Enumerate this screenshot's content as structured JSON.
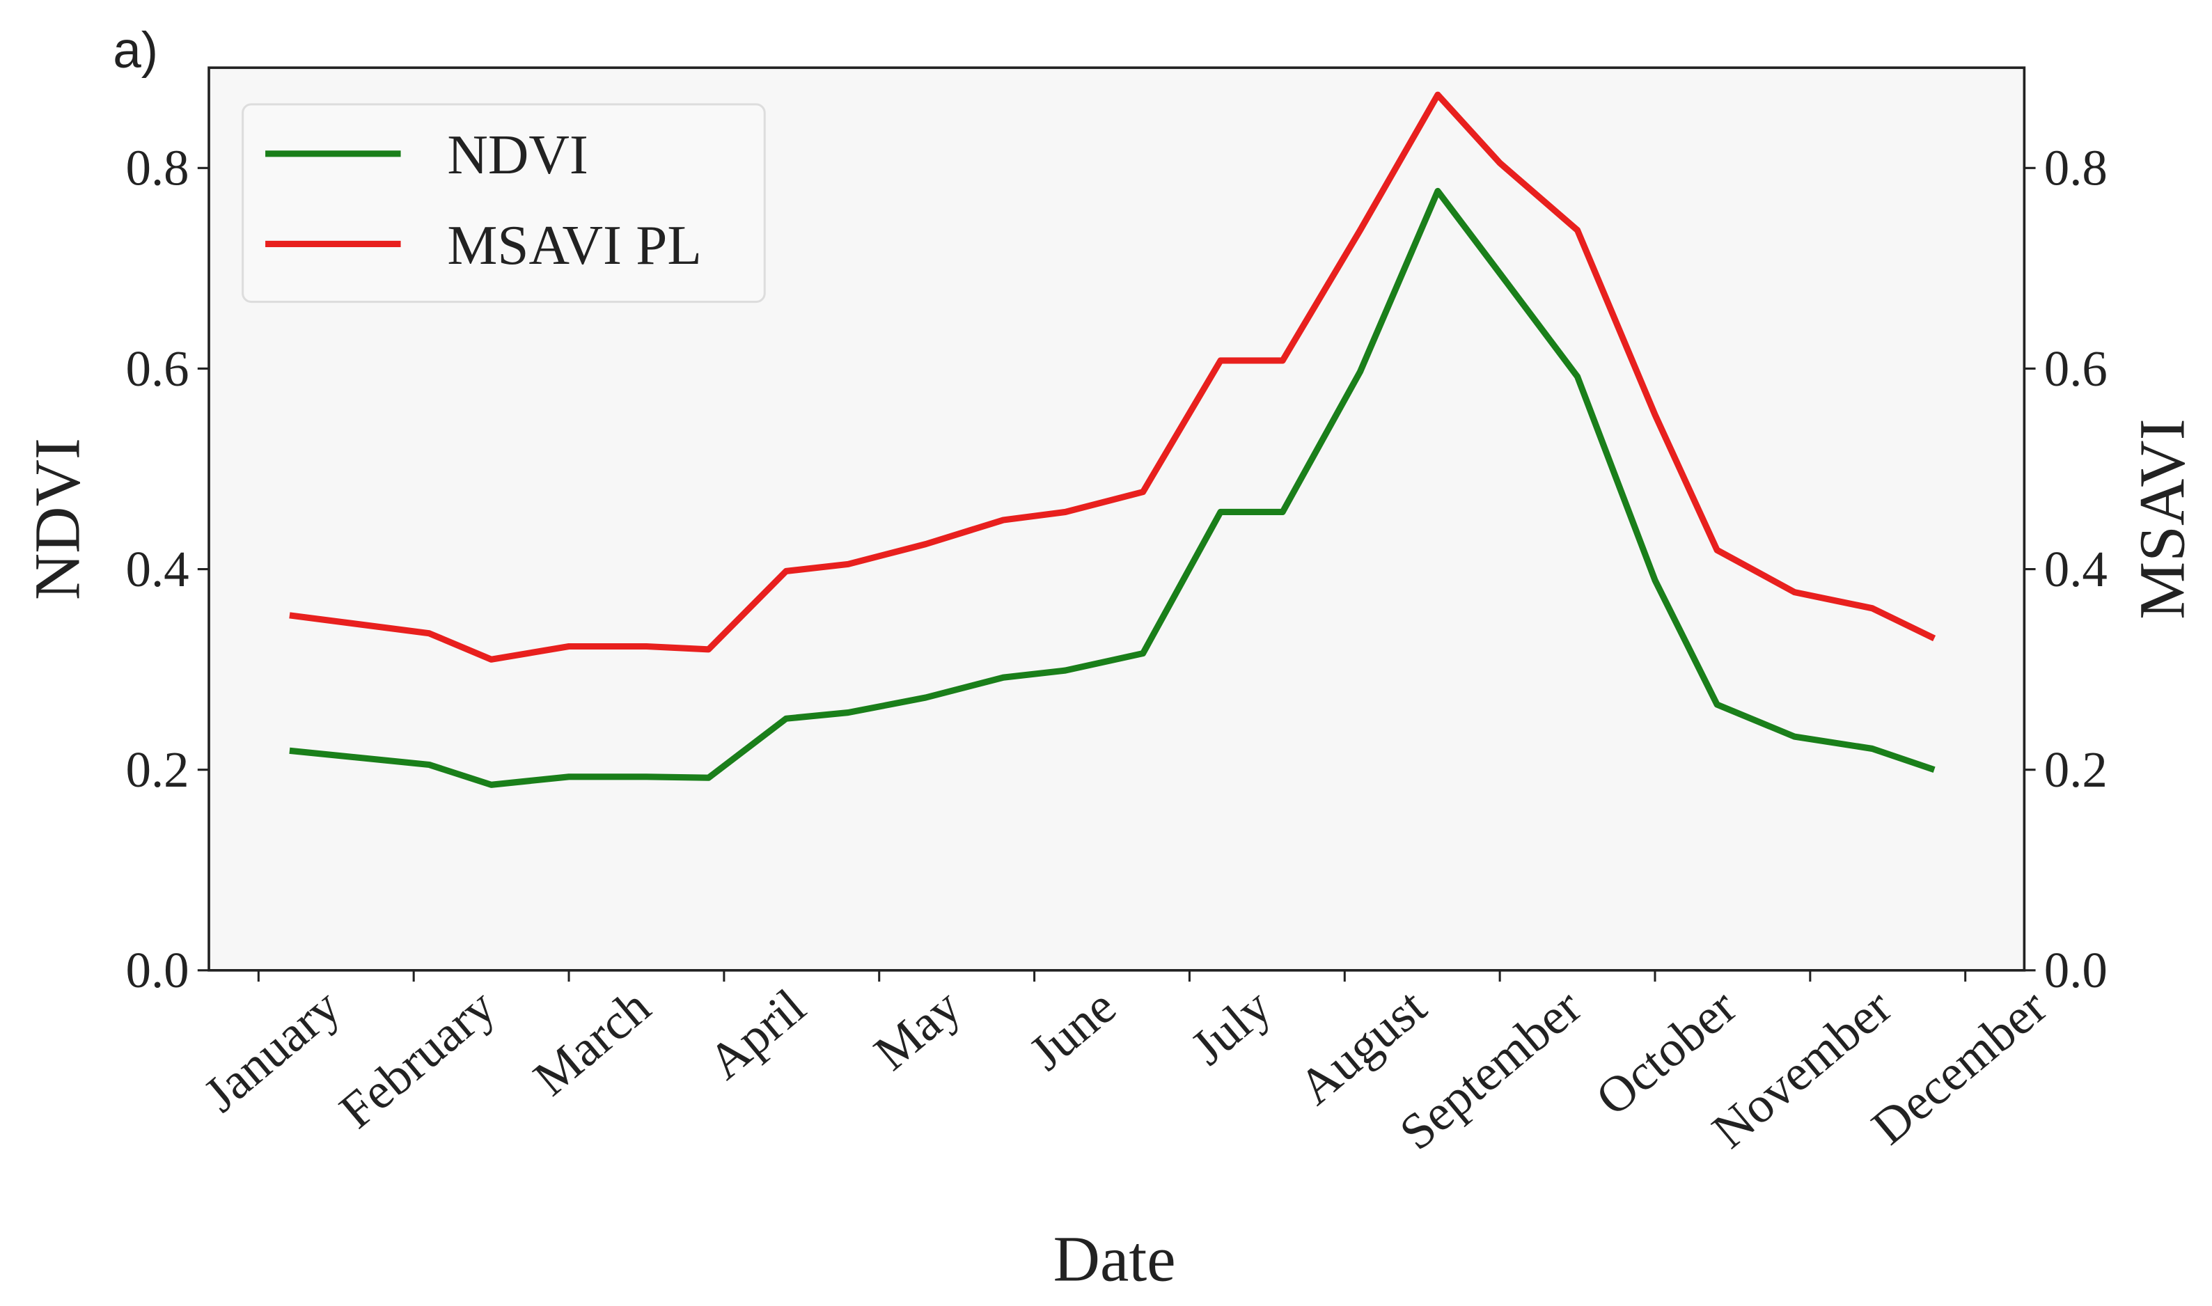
{
  "chart_data": {
    "type": "line",
    "panel_label": "a)",
    "x_label": "Date",
    "y_label": "NDVI",
    "y2_label": "MSAVI",
    "x": [
      1.2,
      2.1,
      2.5,
      3.0,
      3.5,
      3.9,
      4.4,
      4.8,
      5.3,
      5.8,
      6.2,
      6.7,
      7.2,
      7.6,
      8.1,
      8.6,
      9.0,
      9.5,
      10.0,
      10.4,
      10.9,
      11.4,
      11.8
    ],
    "series": [
      {
        "name": "NDVI",
        "color": "#1a7f1a",
        "axis": "y",
        "values": [
          0.219,
          0.205,
          0.185,
          0.193,
          0.193,
          0.192,
          0.251,
          0.257,
          0.272,
          0.292,
          0.299,
          0.316,
          0.457,
          0.457,
          0.597,
          0.777,
          0.695,
          0.592,
          0.389,
          0.265,
          0.233,
          0.221,
          0.2
        ]
      },
      {
        "name": "MSAVI PL",
        "color": "#e8201e",
        "axis": "y2",
        "values": [
          0.354,
          0.336,
          0.31,
          0.323,
          0.323,
          0.32,
          0.398,
          0.405,
          0.425,
          0.449,
          0.457,
          0.477,
          0.608,
          0.608,
          0.738,
          0.873,
          0.805,
          0.738,
          0.554,
          0.419,
          0.377,
          0.361,
          0.331
        ]
      }
    ],
    "xlim": [
      0.68,
      12.38
    ],
    "xticks": [
      {
        "value": 1,
        "label": "January"
      },
      {
        "value": 2,
        "label": "February"
      },
      {
        "value": 3,
        "label": "March"
      },
      {
        "value": 4,
        "label": "April"
      },
      {
        "value": 5,
        "label": "May"
      },
      {
        "value": 6,
        "label": "June"
      },
      {
        "value": 7,
        "label": "July"
      },
      {
        "value": 8,
        "label": "August"
      },
      {
        "value": 9,
        "label": "September"
      },
      {
        "value": 10,
        "label": "October"
      },
      {
        "value": 11,
        "label": "November"
      },
      {
        "value": 12,
        "label": "December"
      }
    ],
    "ylim": [
      0,
      0.9
    ],
    "yticks": [
      {
        "value": 0,
        "label": "0.0"
      },
      0.2,
      0.4,
      0.6,
      0.8
    ],
    "y2lim": [
      0,
      0.9
    ],
    "y2ticks": [
      {
        "value": 0,
        "label": "0.0"
      },
      0.2,
      0.4,
      0.6,
      0.8
    ],
    "legend": "upper left"
  }
}
